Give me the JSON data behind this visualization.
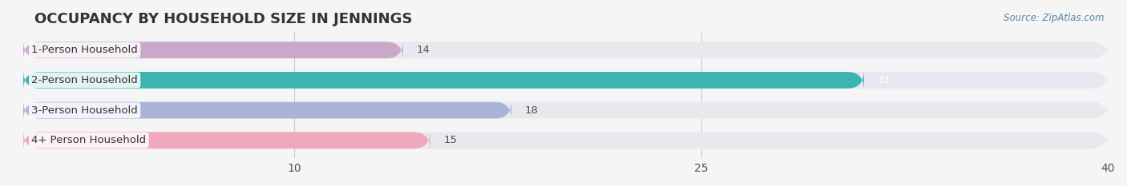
{
  "title": "OCCUPANCY BY HOUSEHOLD SIZE IN JENNINGS",
  "source": "Source: ZipAtlas.com",
  "categories": [
    "1-Person Household",
    "2-Person Household",
    "3-Person Household",
    "4+ Person Household"
  ],
  "values": [
    14,
    31,
    18,
    15
  ],
  "bar_colors": [
    "#c9a8c8",
    "#3ab5b0",
    "#a8b4d8",
    "#f0a8bc"
  ],
  "bar_bg_color": "#e8e8ee",
  "xlim": [
    0,
    40
  ],
  "xticks": [
    10,
    25,
    40
  ],
  "label_colors": [
    "#555555",
    "#ffffff",
    "#555555",
    "#555555"
  ],
  "title_fontsize": 13,
  "tick_fontsize": 10,
  "bar_height": 0.55,
  "background_color": "#f5f5f5"
}
